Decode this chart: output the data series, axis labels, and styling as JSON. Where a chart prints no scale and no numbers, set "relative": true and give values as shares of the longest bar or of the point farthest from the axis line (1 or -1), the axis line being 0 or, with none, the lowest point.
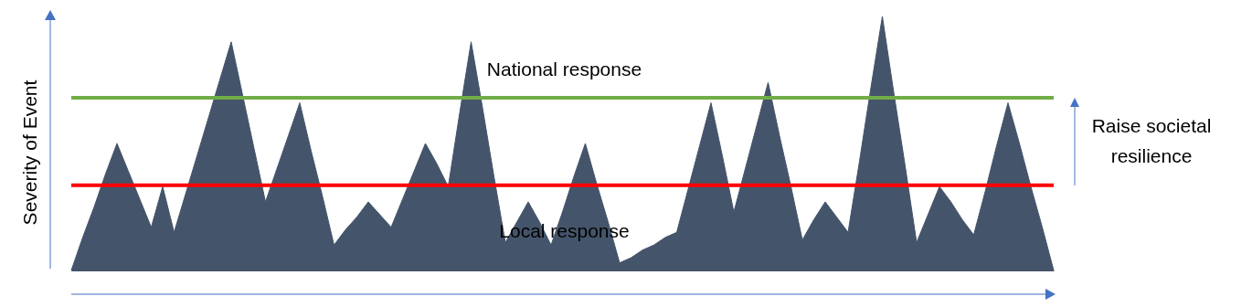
{
  "chart_data": {
    "type": "area",
    "relative": true,
    "ylabel": "Severity of Event",
    "color": "#44546a",
    "categories": [
      null,
      null,
      null,
      null,
      null,
      null,
      null,
      null,
      null,
      null,
      null,
      null,
      null,
      null,
      null,
      null,
      null,
      null,
      null,
      null,
      null,
      null,
      null,
      null,
      null,
      null,
      null,
      null,
      null,
      null,
      null,
      null,
      null,
      null,
      null,
      null,
      null,
      null,
      null,
      null,
      null,
      null,
      null,
      null,
      null,
      null,
      null,
      null,
      null,
      null,
      null,
      null,
      null,
      null,
      null,
      null,
      null,
      null,
      null,
      null,
      null,
      null,
      null,
      null,
      null,
      null,
      null,
      null,
      null,
      null,
      null,
      null,
      null,
      null,
      null,
      null,
      null,
      null,
      null,
      null,
      null,
      null,
      null,
      null,
      null,
      null,
      null
    ],
    "values": [
      0,
      0.13,
      0.25,
      0.38,
      0.5,
      0.39,
      0.28,
      0.17,
      0.33,
      0.15,
      0.3,
      0.45,
      0.6,
      0.75,
      0.9,
      0.69,
      0.48,
      0.27,
      0.4,
      0.53,
      0.66,
      0.47,
      0.29,
      0.1,
      0.16,
      0.21,
      0.27,
      0.22,
      0.17,
      0.28,
      0.39,
      0.5,
      0.42,
      0.33,
      0.62,
      0.9,
      0.64,
      0.37,
      0.11,
      0.19,
      0.27,
      0.19,
      0.1,
      0.23,
      0.37,
      0.5,
      0.34,
      0.19,
      0.03,
      0.05,
      0.08,
      0.1,
      0.13,
      0.15,
      0.32,
      0.49,
      0.66,
      0.45,
      0.23,
      0.4,
      0.57,
      0.74,
      0.53,
      0.33,
      0.12,
      0.2,
      0.27,
      0.21,
      0.15,
      0.43,
      0.72,
      1,
      0.7,
      0.41,
      0.11,
      0.22,
      0.33,
      0.27,
      0.2,
      0.14,
      0.31,
      0.49,
      0.66,
      0.5,
      0.33,
      0.17,
      0
    ],
    "ref_lines": [
      {
        "axis": "y",
        "value": 0.68,
        "label": "National response",
        "color": "#70ad47"
      },
      {
        "axis": "y",
        "value": 0.335,
        "label": "Local response",
        "color": "#ff0000"
      }
    ],
    "annotations": [
      "Raise societal resilience"
    ]
  }
}
